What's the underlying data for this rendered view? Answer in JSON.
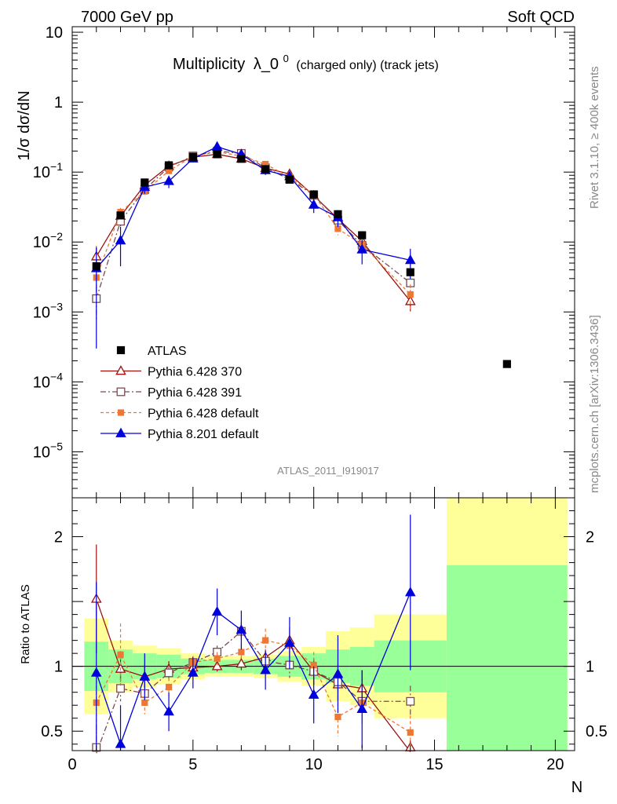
{
  "header": {
    "left": "7000 GeV pp",
    "right": "Soft QCD"
  },
  "side_text": {
    "rivet": "Rivet 3.1.10, ≥ 400k events",
    "mcplots": "mcplots.cern.ch [arXiv:1306.3436]"
  },
  "chart_data": {
    "type": "scatter",
    "title": "Multiplicity",
    "title_symbol": "λ_0",
    "title_sup": "0",
    "title_suffix": "(charged only) (track jets)",
    "analysis_id": "ATLAS_2011_I919017",
    "ylabel": "1/σ dσ/dN",
    "xlabel": "N",
    "ratio_ylabel": "Ratio to ATLAS",
    "xlim": [
      0,
      20.8
    ],
    "ylim_log": [
      2.2e-06,
      12
    ],
    "ratio_ylim": [
      0.35,
      2.3
    ],
    "x_ticks": [
      0,
      5,
      10,
      15,
      20
    ],
    "x_tick_labels": [
      "0",
      "5",
      "10",
      "15",
      "20"
    ],
    "y_tick_labels": [
      {
        "v": 10,
        "base": "10",
        "exp": ""
      },
      {
        "v": 1,
        "base": "1",
        "exp": ""
      },
      {
        "v": 0.1,
        "base": "10",
        "exp": "−1"
      },
      {
        "v": 0.01,
        "base": "10",
        "exp": "−2"
      },
      {
        "v": 0.001,
        "base": "10",
        "exp": "−3"
      },
      {
        "v": 0.0001,
        "base": "10",
        "exp": "−4"
      },
      {
        "v": 1e-05,
        "base": "10",
        "exp": "−5"
      }
    ],
    "ratio_tick_labels": [
      {
        "v": 2,
        "label": "2"
      },
      {
        "v": 1,
        "label": "1"
      },
      {
        "v": 0.5,
        "label": "0.5"
      }
    ],
    "data_bins": [
      [
        0.5,
        1.5
      ],
      [
        1.5,
        2.5
      ],
      [
        2.5,
        3.5
      ],
      [
        3.5,
        4.5
      ],
      [
        4.5,
        5.5
      ],
      [
        5.5,
        6.5
      ],
      [
        6.5,
        7.5
      ],
      [
        7.5,
        8.5
      ],
      [
        8.5,
        9.5
      ],
      [
        9.5,
        10.5
      ],
      [
        10.5,
        11.5
      ],
      [
        11.5,
        12.5
      ],
      [
        12.5,
        15.5
      ],
      [
        15.5,
        20.5
      ]
    ],
    "band_inner": [
      0.19,
      0.13,
      0.1,
      0.09,
      0.06,
      0.05,
      0.05,
      0.06,
      0.08,
      0.1,
      0.13,
      0.15,
      0.2,
      0.78
    ],
    "band_outer": [
      0.37,
      0.2,
      0.16,
      0.14,
      0.1,
      0.08,
      0.08,
      0.09,
      0.12,
      0.15,
      0.27,
      0.3,
      0.4,
      1.5
    ],
    "atlas": {
      "name": "ATLAS",
      "color": "#000000",
      "x": [
        1,
        2,
        3,
        4,
        5,
        6,
        7,
        8,
        9,
        10,
        11,
        12,
        14,
        18
      ],
      "y": [
        0.0045,
        0.024,
        0.071,
        0.125,
        0.165,
        0.18,
        0.155,
        0.11,
        0.078,
        0.048,
        0.025,
        0.0125,
        0.0037,
        0.00018
      ]
    },
    "series": [
      {
        "name": "Pythia 6.428 370",
        "color": "#991111",
        "marker": "open-triangle",
        "dash": "",
        "x": [
          1,
          2,
          3,
          4,
          5,
          6,
          7,
          8,
          9,
          10,
          11,
          12,
          14
        ],
        "y": [
          0.0062,
          0.0235,
          0.065,
          0.122,
          0.163,
          0.18,
          0.155,
          0.114,
          0.094,
          0.046,
          0.0215,
          0.0103,
          0.00142
        ],
        "err_up": [
          0.0025,
          0.004,
          0.006,
          0.01,
          0.01,
          0.01,
          0.01,
          0.008,
          0.01,
          0.005,
          0.004,
          0.002,
          0.0004
        ],
        "err_dn": [
          0.0025,
          0.004,
          0.006,
          0.01,
          0.01,
          0.01,
          0.01,
          0.008,
          0.01,
          0.005,
          0.004,
          0.002,
          0.0004
        ],
        "ratio": [
          1.52,
          0.98,
          0.92,
          0.98,
          0.99,
          1.0,
          1.02,
          1.07,
          1.2,
          0.96,
          0.86,
          0.83,
          0.34
        ],
        "ratio_err": [
          0.42,
          0.1,
          0.09,
          0.06,
          0.05,
          0.04,
          0.05,
          0.06,
          0.1,
          0.1,
          0.12,
          0.14,
          0.09
        ]
      },
      {
        "name": "Pythia 6.428 391",
        "color": "#7a4a50",
        "marker": "open-square",
        "dash": "7,3,2,3",
        "x": [
          1,
          2,
          3,
          4,
          5,
          6,
          7,
          8,
          9,
          10,
          11,
          12,
          14
        ],
        "y": [
          0.00155,
          0.0198,
          0.056,
          0.118,
          0.17,
          0.2,
          0.185,
          0.115,
          0.079,
          0.047,
          0.0205,
          0.009,
          0.0026
        ],
        "err_up": [
          0.0008,
          0.003,
          0.006,
          0.01,
          0.01,
          0.012,
          0.012,
          0.008,
          0.008,
          0.005,
          0.004,
          0.002,
          0.0004
        ],
        "err_dn": [
          0.0008,
          0.003,
          0.006,
          0.01,
          0.01,
          0.012,
          0.012,
          0.008,
          0.008,
          0.005,
          0.004,
          0.002,
          0.0004
        ],
        "ratio": [
          0.33,
          0.83,
          0.79,
          0.95,
          1.03,
          1.11,
          1.27,
          1.04,
          1.01,
          0.96,
          0.88,
          0.73,
          0.73
        ],
        "ratio_err": [
          0.22,
          0.1,
          0.09,
          0.06,
          0.05,
          0.05,
          0.07,
          0.07,
          0.1,
          0.1,
          0.14,
          0.14,
          0.12
        ]
      },
      {
        "name": "Pythia 6.428 default",
        "color": "#ee7733",
        "marker": "filled-square",
        "dash": "4,3",
        "x": [
          1,
          2,
          3,
          4,
          5,
          6,
          7,
          8,
          9,
          10,
          11,
          12,
          14
        ],
        "y": [
          0.0031,
          0.0268,
          0.053,
          0.104,
          0.168,
          0.195,
          0.17,
          0.13,
          0.085,
          0.048,
          0.0155,
          0.0092,
          0.00178
        ],
        "err_up": [
          0.0012,
          0.004,
          0.006,
          0.009,
          0.01,
          0.012,
          0.012,
          0.009,
          0.008,
          0.005,
          0.003,
          0.002,
          0.0007
        ],
        "err_dn": [
          0.0012,
          0.004,
          0.006,
          0.009,
          0.01,
          0.012,
          0.012,
          0.009,
          0.008,
          0.005,
          0.003,
          0.002,
          0.0007
        ],
        "ratio": [
          0.72,
          1.09,
          0.72,
          0.84,
          1.03,
          1.06,
          1.11,
          1.2,
          1.16,
          1.01,
          0.61,
          0.72,
          0.49
        ],
        "ratio_err": [
          0.3,
          0.24,
          0.09,
          0.07,
          0.05,
          0.05,
          0.06,
          0.09,
          0.1,
          0.1,
          0.15,
          0.16,
          0.13
        ]
      },
      {
        "name": "Pythia 8.201 default",
        "color": "#0000dd",
        "marker": "filled-triangle",
        "dash": "",
        "x": [
          1,
          2,
          3,
          4,
          5,
          6,
          7,
          8,
          9,
          10,
          11,
          12,
          14
        ],
        "y": [
          0.0042,
          0.0105,
          0.061,
          0.074,
          0.156,
          0.23,
          0.18,
          0.106,
          0.087,
          0.034,
          0.0225,
          0.0078,
          0.0055
        ],
        "err_up": [
          0.004,
          0.006,
          0.012,
          0.015,
          0.015,
          0.025,
          0.02,
          0.015,
          0.015,
          0.008,
          0.006,
          0.003,
          0.0025
        ],
        "err_dn": [
          0.0039,
          0.006,
          0.012,
          0.015,
          0.015,
          0.025,
          0.02,
          0.015,
          0.015,
          0.008,
          0.006,
          0.003,
          0.0025
        ],
        "ratio": [
          0.95,
          0.4,
          0.92,
          0.65,
          0.95,
          1.42,
          1.28,
          0.97,
          1.18,
          0.78,
          0.94,
          0.67,
          1.57
        ],
        "ratio_err": [
          0.7,
          0.3,
          0.18,
          0.15,
          0.12,
          0.18,
          0.15,
          0.15,
          0.2,
          0.22,
          0.3,
          0.3,
          0.6
        ]
      }
    ]
  }
}
